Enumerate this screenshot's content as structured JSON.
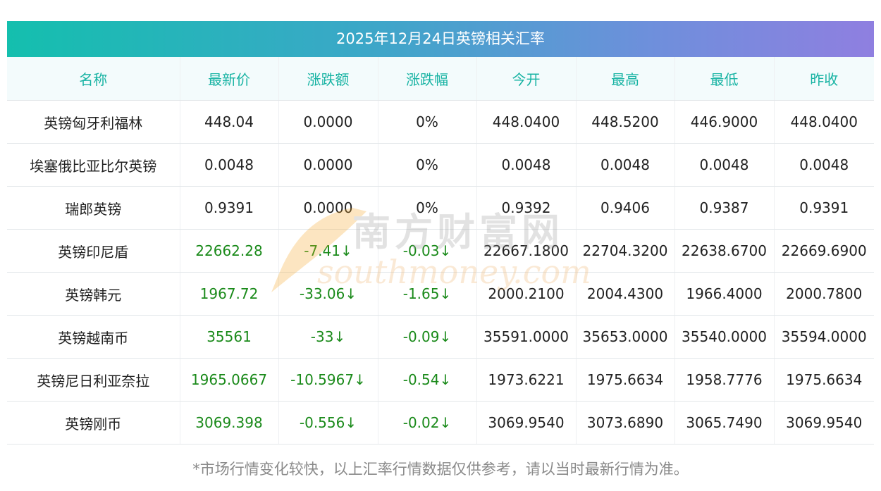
{
  "title": "2025年12月24日英镑相关汇率",
  "headers": [
    "名称",
    "最新价",
    "涨跌额",
    "涨跌幅",
    "今开",
    "最高",
    "最低",
    "昨收"
  ],
  "rows": [
    {
      "name": "英镑匈牙利福林",
      "latest": "448.04",
      "change": "0.0000",
      "pct": "0%",
      "open": "448.0400",
      "high": "448.5200",
      "low": "446.9000",
      "prev": "448.0400",
      "trend": "flat"
    },
    {
      "name": "埃塞俄比亚比尔英镑",
      "latest": "0.0048",
      "change": "0.0000",
      "pct": "0%",
      "open": "0.0048",
      "high": "0.0048",
      "low": "0.0048",
      "prev": "0.0048",
      "trend": "flat"
    },
    {
      "name": "瑞郎英镑",
      "latest": "0.9391",
      "change": "0.0000",
      "pct": "0%",
      "open": "0.9392",
      "high": "0.9406",
      "low": "0.9387",
      "prev": "0.9391",
      "trend": "flat"
    },
    {
      "name": "英镑印尼盾",
      "latest": "22662.28",
      "change": "-7.41↓",
      "pct": "-0.03↓",
      "open": "22667.1800",
      "high": "22704.3200",
      "low": "22638.6700",
      "prev": "22669.6900",
      "trend": "down"
    },
    {
      "name": "英镑韩元",
      "latest": "1967.72",
      "change": "-33.06↓",
      "pct": "-1.65↓",
      "open": "2000.2100",
      "high": "2004.4300",
      "low": "1966.4000",
      "prev": "2000.7800",
      "trend": "down"
    },
    {
      "name": "英镑越南币",
      "latest": "35561",
      "change": "-33↓",
      "pct": "-0.09↓",
      "open": "35591.0000",
      "high": "35653.0000",
      "low": "35540.0000",
      "prev": "35594.0000",
      "trend": "down"
    },
    {
      "name": "英镑尼日利亚奈拉",
      "latest": "1965.0667",
      "change": "-10.5967↓",
      "pct": "-0.54↓",
      "open": "1973.6221",
      "high": "1975.6634",
      "low": "1958.7776",
      "prev": "1975.6634",
      "trend": "down"
    },
    {
      "name": "英镑刚币",
      "latest": "3069.398",
      "change": "-0.556↓",
      "pct": "-0.02↓",
      "open": "3069.9540",
      "high": "3073.6890",
      "low": "3065.7490",
      "prev": "3069.9540",
      "trend": "down"
    }
  ],
  "watermark": {
    "cn": "南方财富网",
    "en": "southmoney.com"
  },
  "footnote": "*市场行情变化较快，以上汇率行情数据仅供参考，请以当时最新行情为准。",
  "colors": {
    "header_text": "#17b3a3",
    "down_text": "#1a8a1a",
    "title_gradient_start": "#14bfae",
    "title_gradient_end": "#8f7fe0"
  }
}
